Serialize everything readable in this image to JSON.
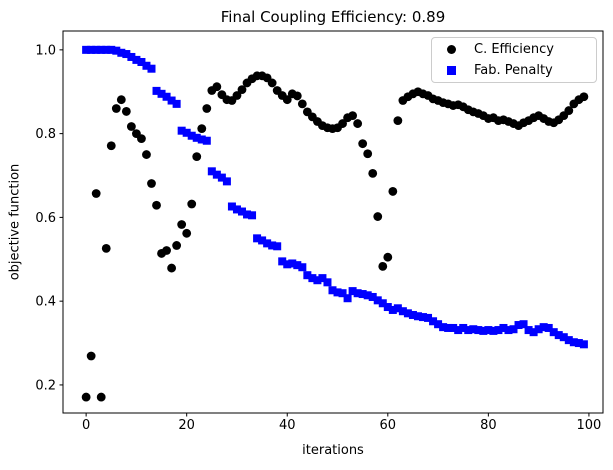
{
  "chart_data": {
    "type": "scatter",
    "title": "Final Coupling Efficiency: 0.89",
    "xlabel": "iterations",
    "ylabel": "objective function",
    "grid": false,
    "legend_position": "upper right",
    "xlim": [
      -4.6,
      102.8
    ],
    "ylim": [
      0.133,
      1.045
    ],
    "x_tick_labels": [
      "0",
      "20",
      "40",
      "60",
      "80",
      "100"
    ],
    "x_tick_values": [
      0,
      20,
      40,
      60,
      80,
      100
    ],
    "y_tick_labels": [
      "0.2",
      "0.4",
      "0.6",
      "0.8",
      "1.0"
    ],
    "y_tick_values": [
      0.2,
      0.4,
      0.6,
      0.8,
      1.0
    ],
    "x": [
      0,
      1,
      2,
      3,
      4,
      5,
      6,
      7,
      8,
      9,
      10,
      11,
      12,
      13,
      14,
      15,
      16,
      17,
      18,
      19,
      20,
      21,
      22,
      23,
      24,
      25,
      26,
      27,
      28,
      29,
      30,
      31,
      32,
      33,
      34,
      35,
      36,
      37,
      38,
      39,
      40,
      41,
      42,
      43,
      44,
      45,
      46,
      47,
      48,
      49,
      50,
      51,
      52,
      53,
      54,
      55,
      56,
      57,
      58,
      59,
      60,
      61,
      62,
      63,
      64,
      65,
      66,
      67,
      68,
      69,
      70,
      71,
      72,
      73,
      74,
      75,
      76,
      77,
      78,
      79,
      80,
      81,
      82,
      83,
      84,
      85,
      86,
      87,
      88,
      89,
      90,
      91,
      92,
      93,
      94,
      95,
      96,
      97,
      98,
      99
    ],
    "series": [
      {
        "name": "C. Efficiency",
        "marker": "circle",
        "color": "#000000",
        "values": [
          0.171,
          0.269,
          0.657,
          0.171,
          0.526,
          0.771,
          0.86,
          0.881,
          0.853,
          0.817,
          0.8,
          0.788,
          0.75,
          0.681,
          0.629,
          0.514,
          0.521,
          0.479,
          0.533,
          0.583,
          0.562,
          0.632,
          0.745,
          0.812,
          0.86,
          0.903,
          0.912,
          0.893,
          0.881,
          0.879,
          0.891,
          0.905,
          0.921,
          0.931,
          0.938,
          0.938,
          0.933,
          0.921,
          0.903,
          0.891,
          0.881,
          0.895,
          0.89,
          0.871,
          0.852,
          0.84,
          0.829,
          0.819,
          0.814,
          0.812,
          0.814,
          0.824,
          0.838,
          0.843,
          0.824,
          0.776,
          0.752,
          0.705,
          0.602,
          0.483,
          0.505,
          0.662,
          0.831,
          0.879,
          0.888,
          0.895,
          0.9,
          0.895,
          0.891,
          0.883,
          0.879,
          0.874,
          0.871,
          0.867,
          0.869,
          0.864,
          0.857,
          0.852,
          0.848,
          0.843,
          0.836,
          0.838,
          0.831,
          0.833,
          0.829,
          0.824,
          0.819,
          0.826,
          0.831,
          0.838,
          0.843,
          0.836,
          0.829,
          0.826,
          0.833,
          0.843,
          0.855,
          0.871,
          0.881,
          0.888
        ]
      },
      {
        "name": "Fab. Penalty",
        "marker": "square",
        "color": "#0000ff",
        "values": [
          1.0,
          1.0,
          1.0,
          1.0,
          1.0,
          1.0,
          0.998,
          0.993,
          0.99,
          0.983,
          0.976,
          0.971,
          0.962,
          0.955,
          0.902,
          0.895,
          0.888,
          0.879,
          0.871,
          0.807,
          0.802,
          0.795,
          0.79,
          0.786,
          0.783,
          0.71,
          0.702,
          0.695,
          0.686,
          0.626,
          0.619,
          0.614,
          0.607,
          0.605,
          0.55,
          0.545,
          0.538,
          0.533,
          0.531,
          0.495,
          0.488,
          0.49,
          0.486,
          0.481,
          0.462,
          0.455,
          0.45,
          0.455,
          0.445,
          0.426,
          0.421,
          0.419,
          0.407,
          0.424,
          0.419,
          0.417,
          0.414,
          0.41,
          0.402,
          0.395,
          0.386,
          0.379,
          0.383,
          0.376,
          0.371,
          0.367,
          0.364,
          0.362,
          0.36,
          0.352,
          0.345,
          0.338,
          0.336,
          0.336,
          0.331,
          0.336,
          0.331,
          0.333,
          0.331,
          0.329,
          0.331,
          0.329,
          0.331,
          0.336,
          0.331,
          0.333,
          0.343,
          0.345,
          0.331,
          0.326,
          0.333,
          0.338,
          0.336,
          0.326,
          0.319,
          0.314,
          0.307,
          0.302,
          0.3,
          0.297
        ]
      }
    ]
  }
}
